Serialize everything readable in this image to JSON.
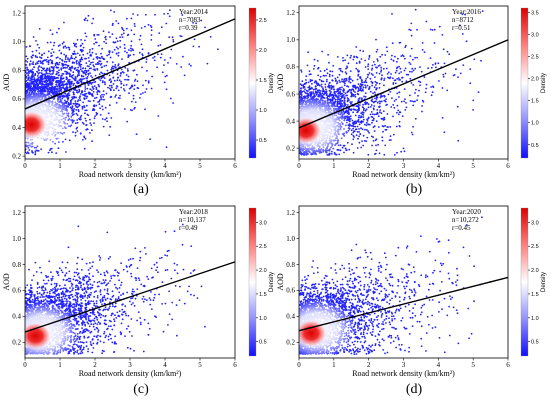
{
  "chart_data": [
    {
      "type": "scatter",
      "panel_label": "(a)",
      "stats": {
        "year": "Year:2014",
        "n": "n=7083",
        "r": "r=0.39"
      },
      "xlabel": "Road network density (km/km²)",
      "ylabel": "AOD",
      "xlim": [
        0,
        6
      ],
      "ylim": [
        0.18,
        1.25
      ],
      "xticks": [
        0,
        1,
        2,
        3,
        4,
        5,
        6
      ],
      "yticks": [
        0.2,
        0.4,
        0.6,
        0.8,
        1.0,
        1.2
      ],
      "ytick_labels": [
        "0.2",
        "0.4",
        "0.6",
        "0.8",
        "1.0",
        "1.2"
      ],
      "fit_line": {
        "x": [
          0,
          6
        ],
        "y": [
          0.53,
          1.16
        ]
      },
      "density_center": {
        "x": 0.18,
        "y": 0.42
      },
      "point_count": 7083,
      "colorbar": {
        "label": "Density",
        "min": 0.2,
        "max": 2.7,
        "ticks": [
          0.5,
          1.0,
          1.5,
          2.0,
          2.5
        ],
        "tick_labels": [
          "0.5",
          "1.0",
          "1.5",
          "2.0",
          "2.5"
        ]
      },
      "colors": {
        "low": "#2222ff",
        "mid": "#ffffff",
        "high": "#dd0000"
      }
    },
    {
      "type": "scatter",
      "panel_label": "(b)",
      "stats": {
        "year": "Year:2016",
        "n": "n=8712",
        "r": "r=0.51"
      },
      "xlabel": "Road network density (km/km²)",
      "ylabel": "AOD",
      "xlim": [
        0,
        6
      ],
      "ylim": [
        0.12,
        1.25
      ],
      "xticks": [
        0,
        1,
        2,
        3,
        4,
        5,
        6
      ],
      "yticks": [
        0.2,
        0.4,
        0.6,
        0.8,
        1.0,
        1.2
      ],
      "ytick_labels": [
        "0.2",
        "0.4",
        "0.6",
        "0.8",
        "1.0",
        "1.2"
      ],
      "fit_line": {
        "x": [
          0,
          6
        ],
        "y": [
          0.35,
          1.0
        ]
      },
      "density_center": {
        "x": 0.2,
        "y": 0.33
      },
      "point_count": 8712,
      "colorbar": {
        "label": "Density",
        "min": 0.2,
        "max": 3.6,
        "ticks": [
          0.5,
          1.0,
          1.5,
          2.0,
          2.5,
          3.0,
          3.5
        ],
        "tick_labels": [
          "0.5",
          "1.0",
          "1.5",
          "2.0",
          "2.5",
          "3.0",
          "3.5"
        ]
      },
      "colors": {
        "low": "#2222ff",
        "mid": "#ffffff",
        "high": "#dd0000"
      }
    },
    {
      "type": "scatter",
      "panel_label": "(c)",
      "stats": {
        "year": "Year:2018",
        "n": "n=10,137",
        "r": "r=0.49"
      },
      "xlabel": "Road network density (km/km²)",
      "ylabel": "AOD",
      "xlim": [
        0,
        6
      ],
      "ylim": [
        0.08,
        1.25
      ],
      "xticks": [
        0,
        1,
        2,
        3,
        4,
        5,
        6
      ],
      "yticks": [
        0.2,
        0.4,
        0.6,
        0.8,
        1.0,
        1.2
      ],
      "ytick_labels": [
        "0.2",
        "0.4",
        "0.6",
        "0.8",
        "1.0",
        "1.2"
      ],
      "fit_line": {
        "x": [
          0,
          6
        ],
        "y": [
          0.28,
          0.82
        ]
      },
      "density_center": {
        "x": 0.3,
        "y": 0.25
      },
      "point_count": 10137,
      "colorbar": {
        "label": "Density",
        "min": 0.2,
        "max": 3.3,
        "ticks": [
          0.5,
          1.0,
          1.5,
          2.0,
          2.5,
          3.0
        ],
        "tick_labels": [
          "0.5",
          "1.0",
          "1.5",
          "2.0",
          "2.5",
          "3.0"
        ]
      },
      "colors": {
        "low": "#2222ff",
        "mid": "#ffffff",
        "high": "#dd0000"
      }
    },
    {
      "type": "scatter",
      "panel_label": "(d)",
      "stats": {
        "year": "Year:2020",
        "n": "n=10,272",
        "r": "r=0.45"
      },
      "xlabel": "Road network density (km/km²)",
      "ylabel": "AOD",
      "xlim": [
        0,
        6
      ],
      "ylim": [
        0.08,
        1.25
      ],
      "xticks": [
        0,
        1,
        2,
        3,
        4,
        5,
        6
      ],
      "yticks": [
        0.2,
        0.4,
        0.6,
        0.8,
        1.0,
        1.2
      ],
      "ytick_labels": [
        "0.2",
        "0.4",
        "0.6",
        "0.8",
        "1.0",
        "1.2"
      ],
      "fit_line": {
        "x": [
          0,
          6
        ],
        "y": [
          0.29,
          0.7
        ]
      },
      "density_center": {
        "x": 0.35,
        "y": 0.27
      },
      "point_count": 10272,
      "colorbar": {
        "label": "Density",
        "min": 0.2,
        "max": 3.3,
        "ticks": [
          0.5,
          1.0,
          1.5,
          2.0,
          2.5,
          3.0
        ],
        "tick_labels": [
          "0.5",
          "1.0",
          "1.5",
          "2.0",
          "2.5",
          "3.0"
        ]
      },
      "colors": {
        "low": "#2222ff",
        "mid": "#ffffff",
        "high": "#dd0000"
      }
    }
  ]
}
